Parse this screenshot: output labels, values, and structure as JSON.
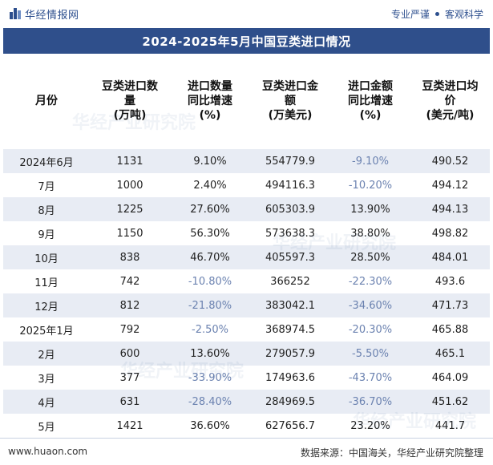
{
  "brand": {
    "name": "华经情报网",
    "slogan_1": "专业严谨",
    "slogan_2": "客观科学"
  },
  "title": "2024-2025年5月中国豆类进口情况",
  "columns": [
    "月份",
    "豆类进口数量（万吨）",
    "进口数量同比增速（%）",
    "豆类进口金额（万美元）",
    "进口金额同比增速（%）",
    "豆类进口均价（美元/吨）"
  ],
  "header_lines": [
    [
      "月份"
    ],
    [
      "豆类进口数",
      "量",
      "(万吨)"
    ],
    [
      "进口数量",
      "同比增速",
      "(%)"
    ],
    [
      "豆类进口金",
      "额",
      "(万美元)"
    ],
    [
      "进口金额",
      "同比增速",
      "(%)"
    ],
    [
      "豆类进口均",
      "价",
      "(美元/吨)"
    ]
  ],
  "rows": [
    [
      "2024年6月",
      "1131",
      "9.10%",
      "554779.9",
      "-9.10%",
      "490.52"
    ],
    [
      "7月",
      "1000",
      "2.40%",
      "494116.3",
      "-10.20%",
      "494.12"
    ],
    [
      "8月",
      "1225",
      "27.60%",
      "605303.9",
      "13.90%",
      "494.13"
    ],
    [
      "9月",
      "1150",
      "56.30%",
      "573638.3",
      "38.80%",
      "498.82"
    ],
    [
      "10月",
      "838",
      "46.70%",
      "405597.3",
      "28.50%",
      "484.01"
    ],
    [
      "11月",
      "742",
      "-10.80%",
      "366252",
      "-22.30%",
      "493.6"
    ],
    [
      "12月",
      "812",
      "-21.80%",
      "383042.1",
      "-34.60%",
      "471.73"
    ],
    [
      "2025年1月",
      "792",
      "-2.50%",
      "368974.5",
      "-20.30%",
      "465.88"
    ],
    [
      "2月",
      "600",
      "13.60%",
      "279057.9",
      "-5.50%",
      "465.1"
    ],
    [
      "3月",
      "377",
      "-33.90%",
      "174963.6",
      "-43.70%",
      "464.09"
    ],
    [
      "4月",
      "631",
      "-28.40%",
      "284969.5",
      "-36.70%",
      "451.62"
    ],
    [
      "5月",
      "1421",
      "36.60%",
      "627656.7",
      "23.20%",
      "441.7"
    ]
  ],
  "footer": {
    "website": "www.huaon.com",
    "source": "数据来源：中国海关，华经产业研究院整理"
  },
  "watermark": "华经产业研究院",
  "colors": {
    "title_bg": "#2f4f8b",
    "stripe": "#e8ecf4",
    "negative_text": "#6b82b0",
    "brand": "#2d4f8e"
  }
}
